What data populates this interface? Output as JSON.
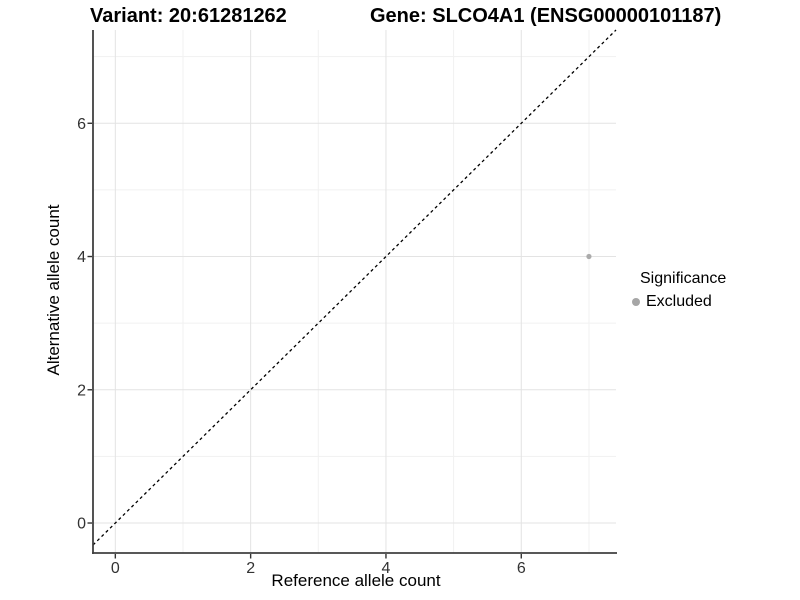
{
  "chart_data": {
    "type": "scatter",
    "title_variant": "Variant: 20:61281262",
    "title_gene": "Gene: SLCO4A1 (ENSG00000101187)",
    "xlabel": "Reference allele count",
    "ylabel": "Alternative allele count",
    "xlim": [
      -0.33,
      7.4
    ],
    "ylim": [
      -0.45,
      7.4
    ],
    "x_major_ticks": [
      0,
      2,
      4,
      6
    ],
    "x_minor_ticks": [
      1,
      3,
      5,
      7
    ],
    "y_major_ticks": [
      0,
      2,
      4,
      6
    ],
    "y_minor_ticks": [
      1,
      3,
      5,
      7
    ],
    "grid": "major+minor",
    "identity_line": {
      "style": "dashed",
      "color": "#000000"
    },
    "series": [
      {
        "name": "Excluded",
        "color": "#ABABAB",
        "point_radius": 2.6,
        "points": [
          [
            7,
            4
          ]
        ]
      }
    ],
    "legend": {
      "title": "Significance",
      "position": "right",
      "items": [
        {
          "label": "Excluded",
          "color": "#A6A6A6"
        }
      ]
    }
  },
  "colors": {
    "background": "#FFFFFF",
    "grid_major": "#E3E3E3",
    "grid_minor": "#F1F1F1",
    "axis_line": "#404040",
    "tick_mark": "#333333",
    "tick_label": "#333333"
  }
}
